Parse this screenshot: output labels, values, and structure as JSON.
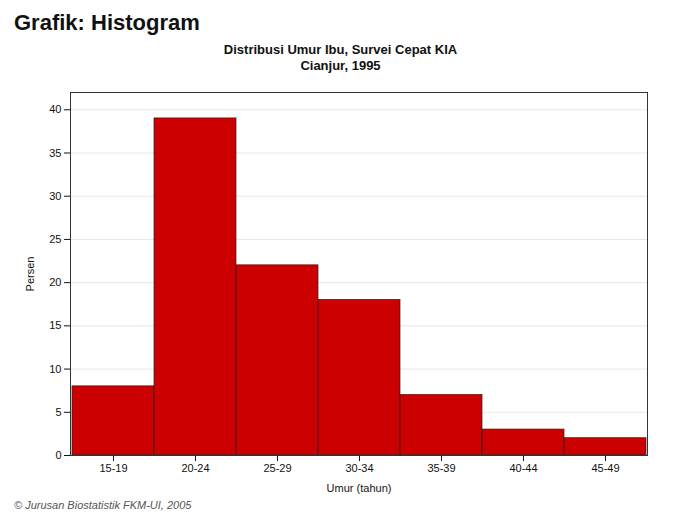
{
  "chart_data": {
    "type": "bar",
    "title": "Grafik: Histogram",
    "subtitle": [
      "Distribusi Umur Ibu, Survei Cepat KIA",
      "Cianjur, 1995"
    ],
    "categories": [
      "15-19",
      "20-24",
      "25-29",
      "30-34",
      "35-39",
      "40-44",
      "45-49"
    ],
    "values": [
      8,
      39,
      22,
      18,
      7,
      3,
      2
    ],
    "color": "#cc0000",
    "x_label": "Umur (tahun)",
    "y_label": "Persen",
    "ylim": [
      0,
      42
    ],
    "yticks": [
      0,
      5,
      10,
      15,
      20,
      25,
      30,
      35,
      40
    ],
    "grid": true,
    "annotations": [
      "© Jurusan Biostatistik FKM-UI, 2005"
    ]
  }
}
